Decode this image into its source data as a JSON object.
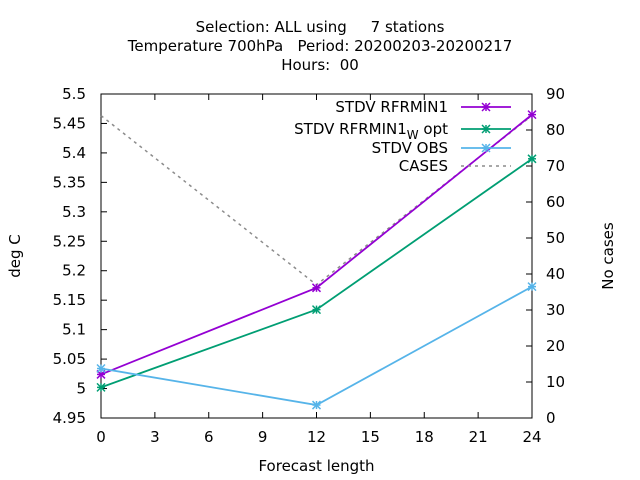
{
  "chart_data": {
    "type": "line",
    "title_lines": [
      "Selection: ALL using     7 stations",
      "Temperature 700hPa   Period: 20200203-20200217",
      "Hours:  00"
    ],
    "xlabel": "Forecast length",
    "ylabel": "deg C",
    "y2label": "No cases",
    "xlim": [
      0,
      24
    ],
    "ylim": [
      4.95,
      5.5
    ],
    "y2lim": [
      0,
      90
    ],
    "x_ticks": [
      "0",
      "3",
      "6",
      "9",
      "12",
      "15",
      "18",
      "21",
      "24"
    ],
    "y_ticks": [
      "4.95",
      "5",
      "5.05",
      "5.1",
      "5.15",
      "5.2",
      "5.25",
      "5.3",
      "5.35",
      "5.4",
      "5.45",
      "5.5"
    ],
    "y2_ticks": [
      "0",
      "10",
      "20",
      "30",
      "40",
      "50",
      "60",
      "70",
      "80",
      "90"
    ],
    "grid": false,
    "legend_position": "top-right",
    "series": [
      {
        "name": "STDV RFRMIN1",
        "color": "#9400d3",
        "marker": "x-star",
        "axis": "left",
        "x": [
          0,
          12,
          24
        ],
        "y": [
          5.024,
          5.171,
          5.465
        ]
      },
      {
        "name": "STDV RFRMIN1",
        "name_subscript": "W",
        "name_suffix": " opt",
        "color": "#009e73",
        "marker": "x-star",
        "axis": "left",
        "x": [
          0,
          12,
          24
        ],
        "y": [
          5.002,
          5.134,
          5.39
        ]
      },
      {
        "name": "STDV OBS",
        "color": "#56b4e9",
        "marker": "x-star",
        "axis": "left",
        "x": [
          0,
          12,
          24
        ],
        "y": [
          5.034,
          4.972,
          5.173
        ]
      },
      {
        "name": "CASES",
        "color": "#8c8c8c",
        "dashed": true,
        "axis": "right",
        "x": [
          0,
          12,
          24
        ],
        "y": [
          84,
          37,
          84
        ]
      }
    ]
  }
}
